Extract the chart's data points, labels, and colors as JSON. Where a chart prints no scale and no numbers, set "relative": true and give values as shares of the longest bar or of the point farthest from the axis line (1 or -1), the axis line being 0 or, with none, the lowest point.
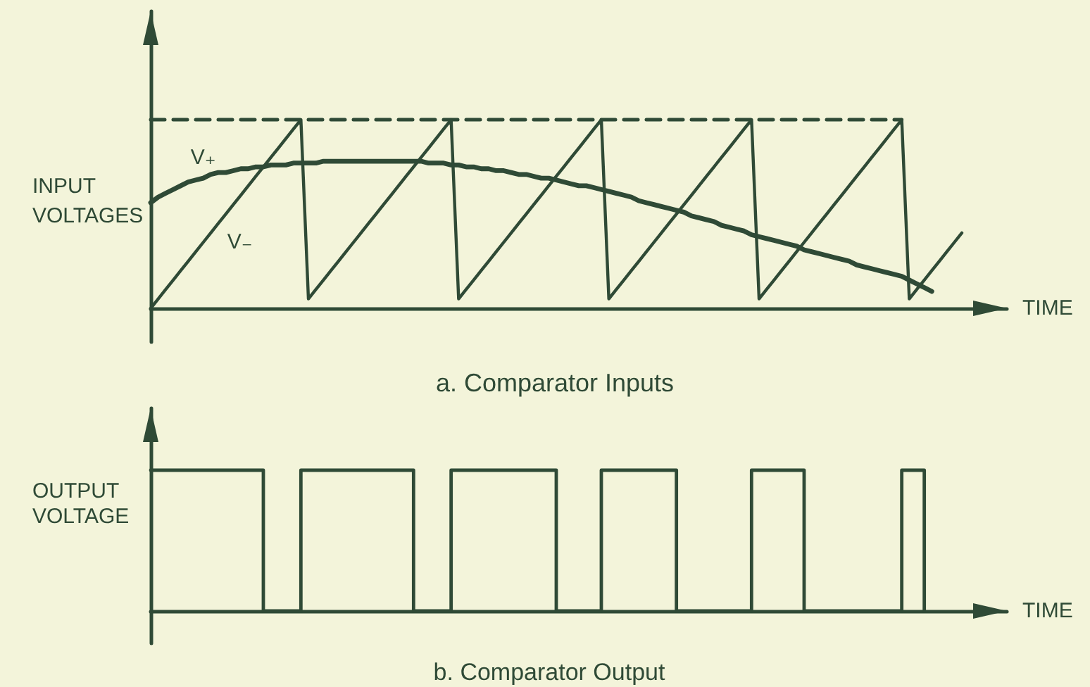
{
  "chart_data": [
    {
      "type": "line",
      "title": "a. Comparator Inputs",
      "xlabel": "TIME",
      "ylabel": "INPUT VOLTAGES",
      "relative": true,
      "marker": "none",
      "categories": [
        null,
        null,
        null,
        null,
        null,
        null,
        null,
        null,
        null,
        null,
        null,
        null,
        null,
        null,
        null,
        null,
        null,
        null,
        null,
        null,
        null,
        null,
        null,
        null,
        null,
        null,
        null,
        null,
        null,
        null,
        null,
        null,
        null,
        null,
        null,
        null,
        null,
        null,
        null,
        null,
        null,
        null,
        null,
        null,
        null,
        null,
        null,
        null,
        null,
        null,
        null,
        null,
        null,
        null,
        null,
        null,
        null,
        null,
        null,
        null,
        null,
        null,
        null,
        null,
        null,
        null,
        null,
        null,
        null,
        null,
        null,
        null,
        null,
        null,
        null,
        null,
        null,
        null,
        null,
        null,
        null,
        null,
        null,
        null,
        null,
        null,
        null,
        null,
        null,
        null,
        null,
        null,
        null,
        null,
        null,
        null,
        null,
        null,
        null,
        null,
        null,
        null,
        null,
        null,
        null,
        null,
        null,
        null,
        null,
        null,
        null,
        null,
        null,
        null,
        null
      ],
      "series": [
        {
          "color": "#2f4a36",
          "line_style": "dashed",
          "values": [
            1,
            1,
            1,
            1,
            1,
            1,
            1,
            1,
            1,
            1,
            1,
            1,
            1,
            1,
            1,
            1,
            1,
            1,
            1,
            1,
            1,
            1,
            1,
            1,
            1,
            1,
            1,
            1,
            1,
            1,
            1,
            1,
            1,
            1,
            1,
            1,
            1,
            1,
            1,
            1,
            1,
            1,
            1,
            1,
            1,
            1,
            1,
            1,
            1,
            1,
            1,
            1,
            1,
            1,
            1,
            1,
            1,
            1,
            1,
            1,
            1,
            1,
            1,
            1,
            1,
            1,
            1,
            1,
            1,
            1,
            1,
            1,
            1,
            1,
            1,
            1,
            1,
            1,
            1,
            1,
            1,
            1,
            1,
            1,
            1,
            1,
            1,
            1,
            1,
            1,
            1,
            1,
            1,
            1,
            1,
            1,
            1,
            1,
            1,
            1,
            1,
            null,
            null,
            null,
            null,
            null,
            null,
            null,
            null,
            null,
            null,
            null,
            null,
            null,
            null
          ]
        },
        {
          "name": "V₊",
          "color": "#2f4a36",
          "values": [
            0.56,
            0.59,
            0.61,
            0.63,
            0.65,
            0.67,
            0.68,
            0.69,
            0.71,
            0.72,
            0.72,
            0.73,
            0.74,
            0.74,
            0.75,
            0.75,
            0.76,
            0.76,
            0.76,
            0.77,
            0.77,
            0.77,
            0.77,
            0.78,
            0.78,
            0.78,
            0.78,
            0.78,
            0.78,
            0.78,
            0.78,
            0.78,
            0.78,
            0.78,
            0.78,
            0.78,
            0.78,
            0.77,
            0.77,
            0.77,
            0.76,
            0.76,
            0.75,
            0.75,
            0.74,
            0.74,
            0.73,
            0.73,
            0.72,
            0.71,
            0.71,
            0.7,
            0.69,
            0.69,
            0.68,
            0.67,
            0.66,
            0.65,
            0.65,
            0.64,
            0.63,
            0.62,
            0.61,
            0.6,
            0.59,
            0.57,
            0.56,
            0.55,
            0.54,
            0.53,
            0.52,
            0.51,
            0.49,
            0.48,
            0.47,
            0.46,
            0.44,
            0.43,
            0.42,
            0.41,
            0.39,
            0.38,
            0.37,
            0.36,
            0.35,
            0.34,
            0.33,
            0.31,
            0.3,
            0.29,
            0.28,
            0.27,
            0.26,
            0.25,
            0.23,
            0.22,
            0.21,
            0.2,
            0.19,
            0.18,
            0.17,
            0.15,
            0.13,
            0.11,
            0.09,
            null,
            null,
            null,
            null,
            null,
            null,
            null,
            null,
            null,
            null
          ]
        },
        {
          "name": "V₋",
          "color": "#2f4a36",
          "values": [
            0,
            0.05,
            0.1,
            0.15,
            0.2,
            0.25,
            0.3,
            0.35,
            0.4,
            0.45,
            0.5,
            0.55,
            0.6,
            0.65,
            0.7,
            0.75,
            0.8,
            0.85,
            0.9,
            0.95,
            1,
            0.05,
            0.1,
            0.15,
            0.2,
            0.25,
            0.3,
            0.35,
            0.4,
            0.45,
            0.5,
            0.55,
            0.6,
            0.65,
            0.7,
            0.75,
            0.8,
            0.85,
            0.9,
            0.95,
            1,
            0.05,
            0.1,
            0.15,
            0.2,
            0.25,
            0.3,
            0.35,
            0.4,
            0.45,
            0.5,
            0.55,
            0.6,
            0.65,
            0.7,
            0.75,
            0.8,
            0.85,
            0.9,
            0.95,
            1,
            0.05,
            0.1,
            0.15,
            0.2,
            0.25,
            0.3,
            0.35,
            0.4,
            0.45,
            0.5,
            0.55,
            0.6,
            0.65,
            0.7,
            0.75,
            0.8,
            0.85,
            0.9,
            0.95,
            1,
            0.05,
            0.1,
            0.15,
            0.2,
            0.25,
            0.3,
            0.35,
            0.4,
            0.45,
            0.5,
            0.55,
            0.6,
            0.65,
            0.7,
            0.75,
            0.8,
            0.85,
            0.9,
            0.95,
            1,
            0.05,
            0.1,
            0.15,
            0.2,
            0.25,
            0.3,
            0.35,
            0.4,
            null,
            null,
            null,
            null,
            null,
            null
          ]
        }
      ]
    },
    {
      "type": "step",
      "title": "b. Comparator Output",
      "xlabel": "TIME",
      "ylabel": "OUTPUT VOLTAGE",
      "relative": true,
      "marker": "none",
      "color": "#2f4a36",
      "categories": [
        null,
        null,
        null,
        null,
        null,
        null,
        null,
        null,
        null,
        null,
        null,
        null,
        null,
        null,
        null,
        null,
        null,
        null,
        null,
        null,
        null,
        null,
        null,
        null,
        null,
        null,
        null,
        null,
        null,
        null,
        null,
        null,
        null,
        null,
        null,
        null,
        null,
        null,
        null,
        null,
        null,
        null,
        null,
        null,
        null,
        null,
        null,
        null,
        null,
        null,
        null,
        null,
        null,
        null,
        null,
        null,
        null,
        null,
        null,
        null,
        null,
        null,
        null,
        null,
        null,
        null,
        null,
        null,
        null,
        null,
        null,
        null,
        null,
        null,
        null,
        null,
        null,
        null,
        null,
        null,
        null,
        null,
        null,
        null,
        null,
        null,
        null,
        null,
        null,
        null,
        null,
        null,
        null,
        null,
        null,
        null,
        null,
        null,
        null,
        null,
        null,
        null,
        null,
        null,
        null,
        null,
        null,
        null,
        null,
        null,
        null,
        null,
        null,
        null,
        null
      ],
      "values": [
        1,
        1,
        1,
        1,
        1,
        1,
        1,
        1,
        1,
        1,
        1,
        1,
        1,
        1,
        1,
        0,
        0,
        0,
        0,
        0,
        1,
        1,
        1,
        1,
        1,
        1,
        1,
        1,
        1,
        1,
        1,
        1,
        1,
        1,
        1,
        0,
        0,
        0,
        0,
        0,
        1,
        1,
        1,
        1,
        1,
        1,
        1,
        1,
        1,
        1,
        1,
        1,
        1,
        1,
        0,
        0,
        0,
        0,
        0,
        0,
        1,
        1,
        1,
        1,
        1,
        1,
        1,
        1,
        1,
        1,
        0,
        0,
        0,
        0,
        0,
        0,
        0,
        0,
        0,
        0,
        1,
        1,
        1,
        1,
        1,
        1,
        1,
        0,
        0,
        0,
        0,
        0,
        0,
        0,
        0,
        0,
        0,
        0,
        0,
        0,
        1,
        1,
        1,
        0,
        null,
        null,
        null,
        null,
        null,
        null,
        null,
        null,
        null,
        null,
        null
      ]
    }
  ]
}
